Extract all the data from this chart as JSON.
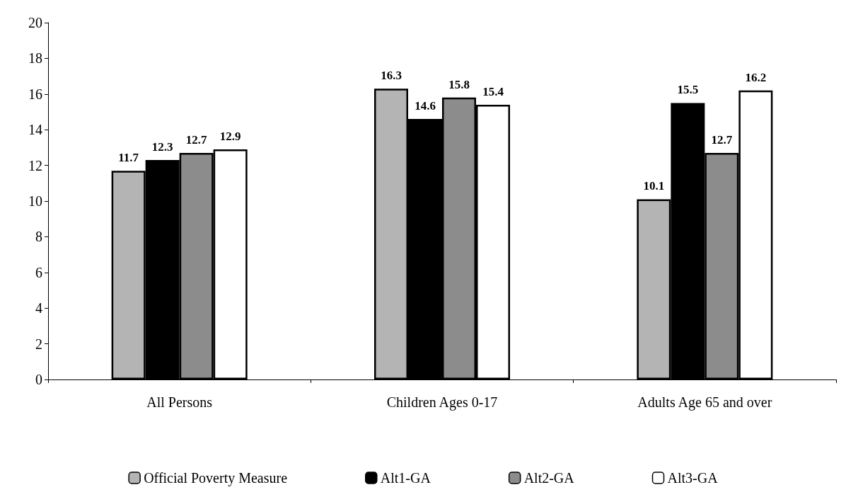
{
  "chart_data": {
    "type": "bar",
    "categories": [
      "All Persons",
      "Children Ages 0-17",
      "Adults Age 65 and over"
    ],
    "series": [
      {
        "name": "Official Poverty Measure",
        "color": "#b4b4b4",
        "values": [
          11.7,
          16.3,
          10.1
        ]
      },
      {
        "name": "Alt1-GA",
        "color": "#000000",
        "values": [
          12.3,
          14.6,
          15.5
        ]
      },
      {
        "name": "Alt2-GA",
        "color": "#8c8c8c",
        "values": [
          12.7,
          15.8,
          12.7
        ]
      },
      {
        "name": "Alt3-GA",
        "color": "#ffffff",
        "values": [
          12.9,
          15.4,
          16.2
        ]
      }
    ],
    "ylim": [
      0,
      20
    ],
    "yticks": [
      0,
      2,
      4,
      6,
      8,
      10,
      12,
      14,
      16,
      18,
      20
    ],
    "grid": false,
    "legend": "bottom",
    "data_labels": true
  }
}
